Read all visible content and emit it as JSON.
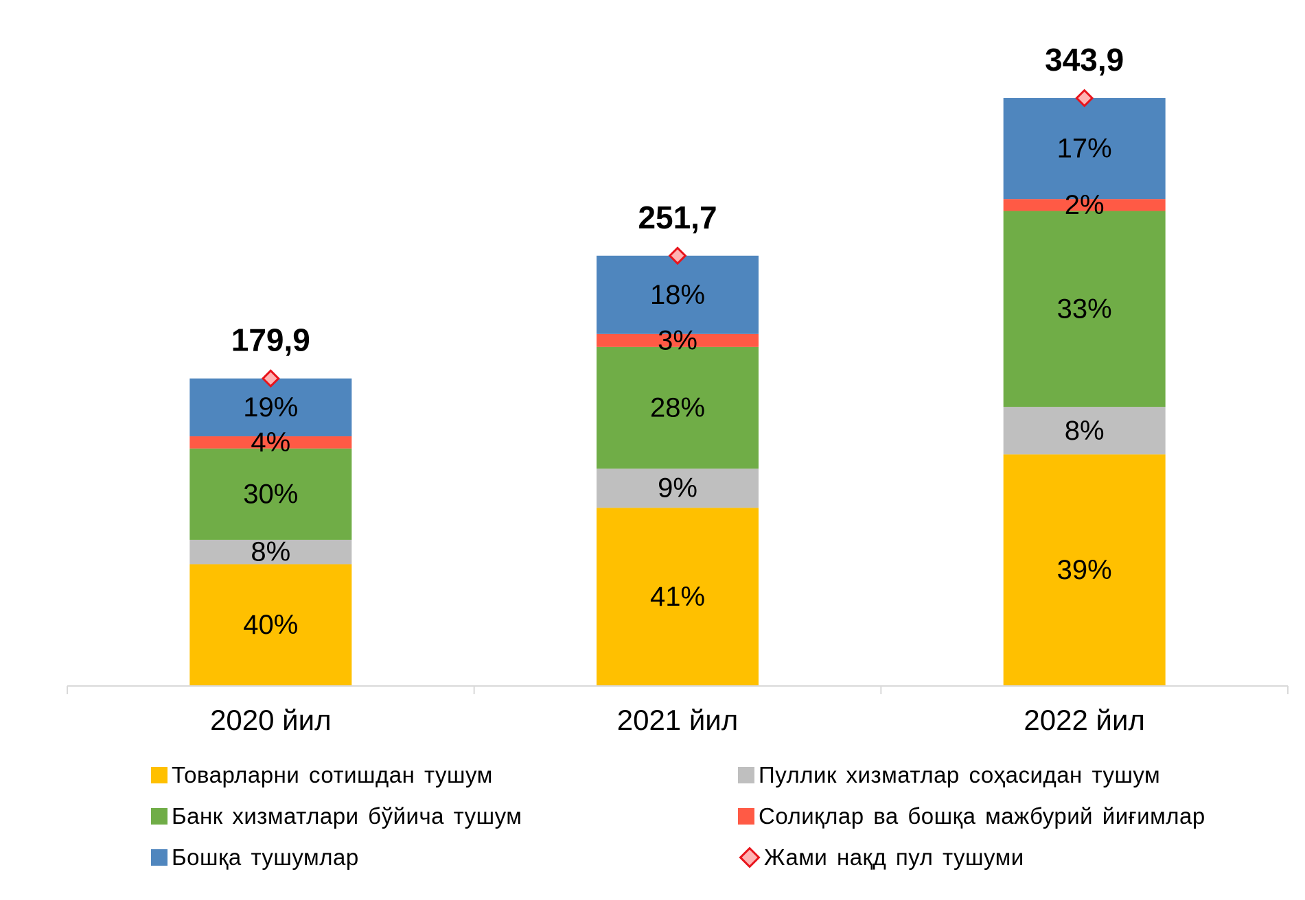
{
  "chart_data": {
    "type": "bar",
    "stacked": true,
    "categories": [
      "2020 йил",
      "2021 йил",
      "2022 йил"
    ],
    "series": [
      {
        "name": "Товарларни сотишдан тушум",
        "color": "#FFC000",
        "values": [
          40,
          41,
          39
        ],
        "labels": [
          "40%",
          "41%",
          "39%"
        ]
      },
      {
        "name": "Пуллик хизматлар соҳасидан тушум",
        "color": "#BFBFBF",
        "values": [
          8,
          9,
          8
        ],
        "labels": [
          "8%",
          "9%",
          "8%"
        ]
      },
      {
        "name": "Банк хизматлари бўйича тушум",
        "color": "#70AD47",
        "values": [
          30,
          28,
          33
        ],
        "labels": [
          "30%",
          "28%",
          "33%"
        ]
      },
      {
        "name": "Солиқлар ва бошқа мажбурий йиғимлар",
        "color": "#FF5A45",
        "values": [
          4,
          3,
          2
        ],
        "labels": [
          "4%",
          "3%",
          "2%"
        ]
      },
      {
        "name": "Бошқа тушумлар",
        "color": "#4F86BE",
        "values": [
          19,
          18,
          17
        ],
        "labels": [
          "19%",
          "18%",
          "17%"
        ]
      }
    ],
    "totals": {
      "name": "Жами нақд пул тушуми",
      "marker": "diamond",
      "marker_color": "#E8141C",
      "values": [
        179.9,
        251.7,
        343.9
      ],
      "labels": [
        "179,9",
        "251,7",
        "343,9"
      ]
    },
    "ylim": [
      0,
      343.9
    ],
    "grid": false,
    "legend_position": "bottom"
  },
  "legend": {
    "items": [
      {
        "label": "Товарларни сотишдан тушум",
        "color": "#FFC000",
        "kind": "square"
      },
      {
        "label": "Пуллик хизматлар соҳасидан тушум",
        "color": "#BFBFBF",
        "kind": "square"
      },
      {
        "label": "Банк хизматлари бўйича тушум",
        "color": "#70AD47",
        "kind": "square"
      },
      {
        "label": "Солиқлар ва бошқа мажбурий йиғимлар",
        "color": "#FF5A45",
        "kind": "square"
      },
      {
        "label": "Бошқа тушумлар",
        "color": "#4F86BE",
        "kind": "square"
      },
      {
        "label": "Жами нақд пул тушуми",
        "color": "#E8141C",
        "kind": "diamond"
      }
    ]
  }
}
